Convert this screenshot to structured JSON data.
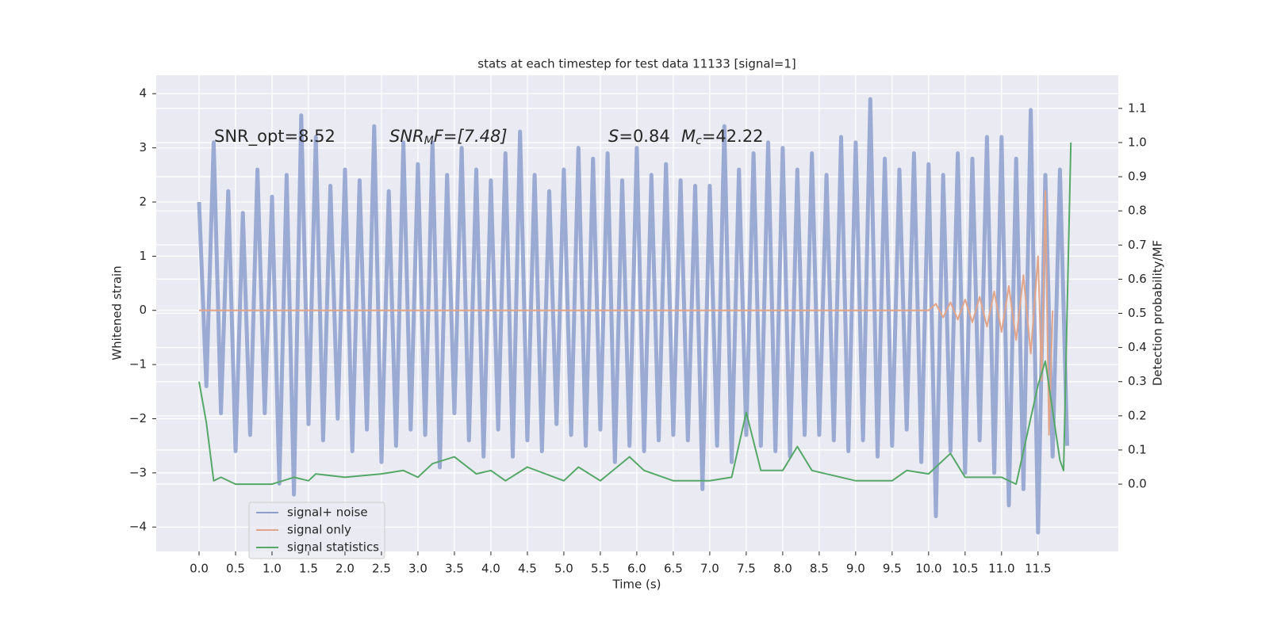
{
  "chart_data": {
    "type": "line",
    "title": "stats at each timestep for test data 11133 [signal=1]",
    "xlabel": "Time (s)",
    "ylabel": "Whitened strain",
    "y2label": "Detection probability/MF",
    "annotations": [
      [
        "SNR_opt=8.52"
      ],
      [
        "SNR",
        "M",
        "F=[7.48]"
      ],
      [
        "S",
        "=0.84"
      ],
      [
        "M",
        "c",
        "=42.22"
      ]
    ],
    "xlim": [
      -0.587,
      12.6
    ],
    "ylim": [
      -4.45,
      4.34
    ],
    "y2lim": [
      -0.197,
      1.197
    ],
    "xticks": [
      {
        "value": 0,
        "label": "0.0"
      },
      {
        "value": 0.5,
        "label": "0.5"
      },
      {
        "value": 1,
        "label": "1.0"
      },
      {
        "value": 1.5,
        "label": "1.5"
      },
      {
        "value": 2,
        "label": "2.0"
      },
      {
        "value": 2.5,
        "label": "2.5"
      },
      {
        "value": 3,
        "label": "3.0"
      },
      {
        "value": 3.5,
        "label": "3.5"
      },
      {
        "value": 4,
        "label": "4.0"
      },
      {
        "value": 4.5,
        "label": "4.5"
      },
      {
        "value": 5,
        "label": "5.0"
      },
      {
        "value": 5.5,
        "label": "5.5"
      },
      {
        "value": 6,
        "label": "6.0"
      },
      {
        "value": 6.5,
        "label": "6.5"
      },
      {
        "value": 7,
        "label": "7.0"
      },
      {
        "value": 7.5,
        "label": "7.5"
      },
      {
        "value": 8,
        "label": "8.0"
      },
      {
        "value": 8.5,
        "label": "8.5"
      },
      {
        "value": 9,
        "label": "9.0"
      },
      {
        "value": 9.5,
        "label": "9.5"
      },
      {
        "value": 10,
        "label": "10.0"
      },
      {
        "value": 10.5,
        "label": "10.5"
      },
      {
        "value": 11,
        "label": "11.0"
      },
      {
        "value": 11.5,
        "label": "11.5"
      }
    ],
    "yticks": [
      {
        "value": -4,
        "label": "−4"
      },
      {
        "value": -3,
        "label": "−3"
      },
      {
        "value": -2,
        "label": "−2"
      },
      {
        "value": -1,
        "label": "−1"
      },
      0,
      1,
      2,
      3,
      4
    ],
    "y2ticks": [
      {
        "value": 0,
        "label": "0.0"
      },
      {
        "value": 0.1,
        "label": "0.1"
      },
      {
        "value": 0.2,
        "label": "0.2"
      },
      {
        "value": 0.3,
        "label": "0.3"
      },
      {
        "value": 0.4,
        "label": "0.4"
      },
      {
        "value": 0.5,
        "label": "0.5"
      },
      {
        "value": 0.6,
        "label": "0.6"
      },
      {
        "value": 0.7,
        "label": "0.7"
      },
      {
        "value": 0.8,
        "label": "0.8"
      },
      {
        "value": 0.9,
        "label": "0.9"
      },
      {
        "value": 1,
        "label": "1.0"
      },
      {
        "value": 1.1,
        "label": "1.1"
      }
    ],
    "grid": true,
    "legend": "lower left",
    "series": [
      {
        "name": "signal+ noise",
        "color": "#8c9fcc",
        "x": [
          0,
          0.1,
          0.2,
          0.3,
          0.4,
          0.5,
          0.6,
          0.7,
          0.8,
          0.9,
          1,
          1.1,
          1.2,
          1.3,
          1.4,
          1.5,
          1.6,
          1.7,
          1.8,
          1.9,
          2,
          2.1,
          2.2,
          2.3,
          2.4,
          2.5,
          2.6,
          2.7,
          2.8,
          2.9,
          3,
          3.1,
          3.2,
          3.3,
          3.4,
          3.5,
          3.6,
          3.7,
          3.8,
          3.9,
          4,
          4.1,
          4.2,
          4.3,
          4.4,
          4.5,
          4.6,
          4.7,
          4.8,
          4.9,
          5,
          5.1,
          5.2,
          5.3,
          5.4,
          5.5,
          5.6,
          5.7,
          5.8,
          5.9,
          6,
          6.1,
          6.2,
          6.3,
          6.4,
          6.5,
          6.6,
          6.7,
          6.8,
          6.9,
          7,
          7.1,
          7.2,
          7.3,
          7.4,
          7.5,
          7.6,
          7.7,
          7.8,
          7.9,
          8,
          8.1,
          8.2,
          8.3,
          8.4,
          8.5,
          8.6,
          8.7,
          8.8,
          8.9,
          9,
          9.1,
          9.2,
          9.3,
          9.4,
          9.5,
          9.6,
          9.7,
          9.8,
          9.9,
          10,
          10.1,
          10.2,
          10.3,
          10.4,
          10.5,
          10.6,
          10.7,
          10.8,
          10.9,
          11,
          11.1,
          11.2,
          11.3,
          11.4,
          11.5,
          11.6,
          11.7,
          11.8,
          11.9
        ],
        "values": [
          2.0,
          -1.4,
          3.1,
          -1.9,
          2.2,
          -2.6,
          1.8,
          -2.3,
          2.6,
          -1.9,
          2.1,
          -3.2,
          2.5,
          -3.4,
          3.6,
          -2.1,
          3.2,
          -2.4,
          2.3,
          -2.0,
          2.6,
          -2.6,
          2.4,
          -2.2,
          3.4,
          -2.8,
          2.2,
          -2.5,
          3.1,
          -2.2,
          2.7,
          -2.3,
          3.1,
          -2.9,
          2.5,
          -1.9,
          3.0,
          -2.4,
          2.6,
          -2.7,
          2.4,
          -2.2,
          2.9,
          -2.7,
          3.3,
          -2.4,
          2.5,
          -2.6,
          2.2,
          -2.1,
          2.6,
          -2.3,
          3.0,
          -2.5,
          2.8,
          -2.2,
          2.9,
          -2.8,
          2.4,
          -2.5,
          3.0,
          -2.6,
          2.5,
          -2.4,
          2.7,
          -2.3,
          2.4,
          -2.4,
          2.3,
          -3.3,
          2.3,
          -2.5,
          3.4,
          -2.8,
          2.6,
          -2.3,
          2.9,
          -2.5,
          3.1,
          -2.6,
          3.0,
          -2.7,
          2.6,
          -2.3,
          2.9,
          -2.3,
          2.5,
          -2.4,
          3.2,
          -2.6,
          3.1,
          -2.4,
          3.9,
          -2.7,
          2.8,
          -2.5,
          2.6,
          -2.2,
          2.9,
          -2.8,
          2.7,
          -3.8,
          2.5,
          -2.6,
          2.9,
          -3.0,
          2.8,
          -2.4,
          3.2,
          -3.0,
          3.2,
          -3.6,
          2.8,
          -3.3,
          3.7,
          -4.1,
          2.5,
          -2.7,
          2.6,
          -2.5
        ]
      },
      {
        "name": "signal only",
        "color": "#e1a58a",
        "x": [
          0,
          2,
          4,
          6,
          8,
          9,
          10,
          10.1,
          10.2,
          10.3,
          10.4,
          10.5,
          10.6,
          10.7,
          10.8,
          10.9,
          11,
          11.1,
          11.2,
          11.3,
          11.4,
          11.5,
          11.55,
          11.6,
          11.65,
          11.7
        ],
        "values": [
          0,
          0,
          0,
          0,
          0,
          0,
          0,
          0.12,
          -0.13,
          0.15,
          -0.17,
          0.2,
          -0.22,
          0.25,
          -0.3,
          0.35,
          -0.4,
          0.45,
          -0.55,
          0.65,
          -0.8,
          1.0,
          -1.3,
          2.2,
          -2.3,
          0
        ]
      },
      {
        "name": "signal statistics",
        "color": "#55a868",
        "axis": "y2",
        "x": [
          0,
          0.1,
          0.2,
          0.3,
          0.5,
          1.0,
          1.3,
          1.5,
          1.6,
          2.0,
          2.5,
          2.8,
          3.0,
          3.2,
          3.5,
          3.8,
          4.0,
          4.2,
          4.5,
          5.0,
          5.2,
          5.5,
          5.9,
          6.1,
          6.5,
          7.0,
          7.3,
          7.5,
          7.7,
          8.0,
          8.2,
          8.4,
          9.0,
          9.5,
          9.7,
          10.0,
          10.3,
          10.5,
          11.0,
          11.2,
          11.5,
          11.6,
          11.8,
          11.85,
          11.95
        ],
        "values": [
          0.3,
          0.18,
          0.01,
          0.02,
          0.0,
          0.0,
          0.02,
          0.01,
          0.03,
          0.02,
          0.03,
          0.04,
          0.02,
          0.06,
          0.08,
          0.03,
          0.04,
          0.01,
          0.05,
          0.01,
          0.05,
          0.01,
          0.08,
          0.04,
          0.01,
          0.01,
          0.02,
          0.21,
          0.04,
          0.04,
          0.11,
          0.04,
          0.01,
          0.01,
          0.04,
          0.03,
          0.09,
          0.02,
          0.02,
          0.0,
          0.29,
          0.36,
          0.07,
          0.04,
          1.0
        ]
      }
    ]
  }
}
